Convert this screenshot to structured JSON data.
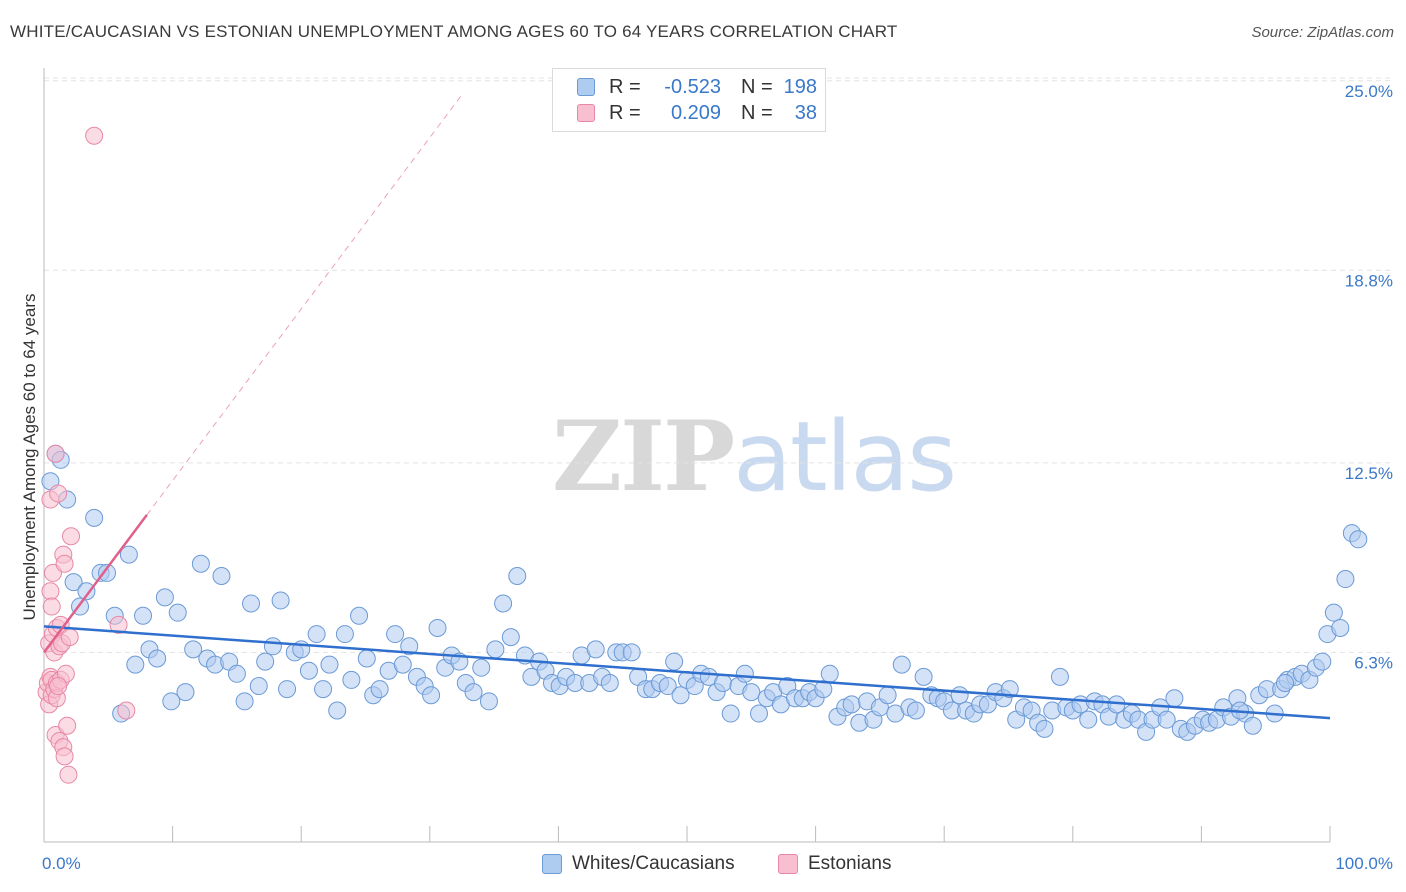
{
  "header": {
    "title": "WHITE/CAUCASIAN VS ESTONIAN UNEMPLOYMENT AMONG AGES 60 TO 64 YEARS CORRELATION CHART",
    "source": "Source: ZipAtlas.com"
  },
  "legend": {
    "items": [
      {
        "r_label": "R =",
        "r_value": "-0.523",
        "n_label": "N =",
        "n_value": "198"
      },
      {
        "r_label": "R =",
        "r_value": "0.209",
        "n_label": "N =",
        "n_value": "38"
      }
    ]
  },
  "watermark": {
    "zip": "ZIP",
    "atlas": "atlas"
  },
  "colors": {
    "blue_fill": "#aecbf0",
    "blue_stroke": "#6b9ad6",
    "blue_line": "#2f6fce",
    "pink_fill": "#f7bfd0",
    "pink_stroke": "#e888a6",
    "pink_line": "#e0608a",
    "grid": "#e3e3e3",
    "tick_label": "#3a78c9"
  },
  "chart_data": {
    "type": "scatter",
    "title": "WHITE/CAUCASIAN VS ESTONIAN UNEMPLOYMENT AMONG AGES 60 TO 64 YEARS CORRELATION CHART",
    "xlabel": "",
    "ylabel": "Unemployment Among Ages 60 to 64 years",
    "xlim": [
      0,
      100
    ],
    "ylim": [
      0,
      26
    ],
    "x_tick_labels": [
      "0.0%",
      "100.0%"
    ],
    "y_ticks": [
      6.3,
      12.5,
      18.8,
      25.0
    ],
    "y_tick_labels": [
      "6.3%",
      "12.5%",
      "18.8%",
      "25.0%"
    ],
    "grid": true,
    "legend_position": "top-center",
    "series": [
      {
        "name": "Whites/Caucasians",
        "color": "#aecbf0",
        "r": -0.523,
        "n": 198,
        "trend": {
          "x": [
            0,
            100
          ],
          "y": [
            7.15,
            4.15
          ]
        },
        "points": [
          [
            0.5,
            11.9
          ],
          [
            0.9,
            12.8
          ],
          [
            1.3,
            12.6
          ],
          [
            1.8,
            11.3
          ],
          [
            2.3,
            8.6
          ],
          [
            2.8,
            7.8
          ],
          [
            3.3,
            8.3
          ],
          [
            3.9,
            10.7
          ],
          [
            4.4,
            8.9
          ],
          [
            4.9,
            8.9
          ],
          [
            5.5,
            7.5
          ],
          [
            6.0,
            4.3
          ],
          [
            6.6,
            9.5
          ],
          [
            7.1,
            5.9
          ],
          [
            7.7,
            7.5
          ],
          [
            8.2,
            6.4
          ],
          [
            8.8,
            6.1
          ],
          [
            9.4,
            8.1
          ],
          [
            9.9,
            4.7
          ],
          [
            10.4,
            7.6
          ],
          [
            11.0,
            5.0
          ],
          [
            11.6,
            6.4
          ],
          [
            12.2,
            9.2
          ],
          [
            12.7,
            6.1
          ],
          [
            13.3,
            5.9
          ],
          [
            13.8,
            8.8
          ],
          [
            14.4,
            6.0
          ],
          [
            15.0,
            5.6
          ],
          [
            15.6,
            4.7
          ],
          [
            16.1,
            7.9
          ],
          [
            16.7,
            5.2
          ],
          [
            17.2,
            6.0
          ],
          [
            17.8,
            6.5
          ],
          [
            18.4,
            8.0
          ],
          [
            18.9,
            5.1
          ],
          [
            19.5,
            6.3
          ],
          [
            20.0,
            6.4
          ],
          [
            20.6,
            5.7
          ],
          [
            21.2,
            6.9
          ],
          [
            21.7,
            5.1
          ],
          [
            22.2,
            5.9
          ],
          [
            22.8,
            4.4
          ],
          [
            23.4,
            6.9
          ],
          [
            23.9,
            5.4
          ],
          [
            24.5,
            7.5
          ],
          [
            25.1,
            6.1
          ],
          [
            25.6,
            4.9
          ],
          [
            26.1,
            5.1
          ],
          [
            26.8,
            5.7
          ],
          [
            27.3,
            6.9
          ],
          [
            27.9,
            5.9
          ],
          [
            28.4,
            6.5
          ],
          [
            29.0,
            5.5
          ],
          [
            29.6,
            5.2
          ],
          [
            30.1,
            4.9
          ],
          [
            30.6,
            7.1
          ],
          [
            31.2,
            5.8
          ],
          [
            31.7,
            6.2
          ],
          [
            32.3,
            6.0
          ],
          [
            32.8,
            5.3
          ],
          [
            33.4,
            5.0
          ],
          [
            34.0,
            5.8
          ],
          [
            34.6,
            4.7
          ],
          [
            35.1,
            6.4
          ],
          [
            35.7,
            7.9
          ],
          [
            36.3,
            6.8
          ],
          [
            36.8,
            8.8
          ],
          [
            37.4,
            6.2
          ],
          [
            37.9,
            5.5
          ],
          [
            38.5,
            6.0
          ],
          [
            39.0,
            5.7
          ],
          [
            39.5,
            5.3
          ],
          [
            40.1,
            5.2
          ],
          [
            40.6,
            5.5
          ],
          [
            41.3,
            5.3
          ],
          [
            41.8,
            6.2
          ],
          [
            42.4,
            5.3
          ],
          [
            42.9,
            6.4
          ],
          [
            43.4,
            5.5
          ],
          [
            44.0,
            5.3
          ],
          [
            44.5,
            6.3
          ],
          [
            45.0,
            6.3
          ],
          [
            45.7,
            6.3
          ],
          [
            46.2,
            5.5
          ],
          [
            46.8,
            5.1
          ],
          [
            47.3,
            5.1
          ],
          [
            47.9,
            5.3
          ],
          [
            48.5,
            5.2
          ],
          [
            49.0,
            6.0
          ],
          [
            49.5,
            4.9
          ],
          [
            50.0,
            5.4
          ],
          [
            50.6,
            5.2
          ],
          [
            51.1,
            5.6
          ],
          [
            51.7,
            5.5
          ],
          [
            52.3,
            5.0
          ],
          [
            52.8,
            5.3
          ],
          [
            53.4,
            4.3
          ],
          [
            54.0,
            5.2
          ],
          [
            54.5,
            5.6
          ],
          [
            55.0,
            5.0
          ],
          [
            55.6,
            4.3
          ],
          [
            56.2,
            4.8
          ],
          [
            56.7,
            5.0
          ],
          [
            57.3,
            4.6
          ],
          [
            57.8,
            5.2
          ],
          [
            58.4,
            4.8
          ],
          [
            59.0,
            4.8
          ],
          [
            59.5,
            5.0
          ],
          [
            60.0,
            4.8
          ],
          [
            60.6,
            5.1
          ],
          [
            61.1,
            5.6
          ],
          [
            61.7,
            4.2
          ],
          [
            62.3,
            4.5
          ],
          [
            62.8,
            4.6
          ],
          [
            63.4,
            4.0
          ],
          [
            64.0,
            4.7
          ],
          [
            64.5,
            4.1
          ],
          [
            65.0,
            4.5
          ],
          [
            65.6,
            4.9
          ],
          [
            66.2,
            4.3
          ],
          [
            66.7,
            5.9
          ],
          [
            67.3,
            4.5
          ],
          [
            67.8,
            4.4
          ],
          [
            68.4,
            5.5
          ],
          [
            69.0,
            4.9
          ],
          [
            69.5,
            4.8
          ],
          [
            70.0,
            4.7
          ],
          [
            70.6,
            4.4
          ],
          [
            71.2,
            4.9
          ],
          [
            71.7,
            4.4
          ],
          [
            72.3,
            4.3
          ],
          [
            72.8,
            4.6
          ],
          [
            73.4,
            4.6
          ],
          [
            74.0,
            5.0
          ],
          [
            74.6,
            4.8
          ],
          [
            75.1,
            5.1
          ],
          [
            75.6,
            4.1
          ],
          [
            76.2,
            4.5
          ],
          [
            76.8,
            4.4
          ],
          [
            77.3,
            4.0
          ],
          [
            77.8,
            3.8
          ],
          [
            78.4,
            4.4
          ],
          [
            79.0,
            5.5
          ],
          [
            79.5,
            4.5
          ],
          [
            80.0,
            4.4
          ],
          [
            80.6,
            4.6
          ],
          [
            81.2,
            4.1
          ],
          [
            81.7,
            4.7
          ],
          [
            82.3,
            4.6
          ],
          [
            82.8,
            4.2
          ],
          [
            83.4,
            4.6
          ],
          [
            84.0,
            4.1
          ],
          [
            84.6,
            4.3
          ],
          [
            85.1,
            4.1
          ],
          [
            85.7,
            3.7
          ],
          [
            86.2,
            4.1
          ],
          [
            86.8,
            4.5
          ],
          [
            87.3,
            4.1
          ],
          [
            87.9,
            4.8
          ],
          [
            88.4,
            3.8
          ],
          [
            88.9,
            3.7
          ],
          [
            89.5,
            3.9
          ],
          [
            90.1,
            4.1
          ],
          [
            90.6,
            4.0
          ],
          [
            91.2,
            4.1
          ],
          [
            91.7,
            4.5
          ],
          [
            92.3,
            4.2
          ],
          [
            92.8,
            4.8
          ],
          [
            93.4,
            4.3
          ],
          [
            94.0,
            3.9
          ],
          [
            94.5,
            4.9
          ],
          [
            95.1,
            5.1
          ],
          [
            95.7,
            4.3
          ],
          [
            96.2,
            5.1
          ],
          [
            96.7,
            5.4
          ],
          [
            97.3,
            5.5
          ],
          [
            97.8,
            5.6
          ],
          [
            98.4,
            5.4
          ],
          [
            98.9,
            5.8
          ],
          [
            99.4,
            6.0
          ],
          [
            99.8,
            6.9
          ],
          [
            100.3,
            7.6
          ],
          [
            100.8,
            7.1
          ],
          [
            101.2,
            8.7
          ],
          [
            101.7,
            10.2
          ],
          [
            102.2,
            10.0
          ],
          [
            96.5,
            5.3
          ],
          [
            93.0,
            4.4
          ]
        ]
      },
      {
        "name": "Estonians",
        "color": "#f7bfd0",
        "r": 0.209,
        "n": 38,
        "trend": {
          "x": [
            0,
            8.0
          ],
          "y": [
            6.3,
            10.8
          ]
        },
        "trend_extended": {
          "x": [
            8.0,
            32.6
          ],
          "y": [
            10.8,
            24.6
          ]
        },
        "points": [
          [
            0.2,
            5.0
          ],
          [
            0.3,
            5.3
          ],
          [
            0.4,
            4.6
          ],
          [
            0.4,
            6.6
          ],
          [
            0.5,
            5.5
          ],
          [
            0.5,
            8.3
          ],
          [
            0.5,
            11.3
          ],
          [
            0.6,
            4.9
          ],
          [
            0.6,
            7.8
          ],
          [
            0.6,
            5.4
          ],
          [
            0.7,
            6.9
          ],
          [
            0.7,
            8.9
          ],
          [
            0.8,
            6.3
          ],
          [
            0.8,
            5.1
          ],
          [
            0.9,
            3.6
          ],
          [
            0.9,
            12.8
          ],
          [
            1.0,
            5.3
          ],
          [
            1.0,
            7.1
          ],
          [
            1.0,
            4.8
          ],
          [
            1.1,
            11.5
          ],
          [
            1.2,
            6.5
          ],
          [
            1.2,
            3.4
          ],
          [
            1.3,
            5.4
          ],
          [
            1.3,
            7.2
          ],
          [
            1.4,
            6.6
          ],
          [
            1.5,
            3.2
          ],
          [
            1.5,
            9.5
          ],
          [
            1.6,
            2.9
          ],
          [
            1.6,
            9.2
          ],
          [
            1.7,
            5.6
          ],
          [
            1.8,
            3.9
          ],
          [
            1.9,
            2.3
          ],
          [
            2.0,
            6.8
          ],
          [
            2.1,
            10.1
          ],
          [
            3.9,
            23.2
          ],
          [
            5.8,
            7.2
          ],
          [
            6.4,
            4.4
          ],
          [
            1.1,
            5.2
          ]
        ]
      }
    ]
  },
  "bottom_legend": {
    "items": [
      {
        "label": "Whites/Caucasians"
      },
      {
        "label": "Estonians"
      }
    ]
  }
}
